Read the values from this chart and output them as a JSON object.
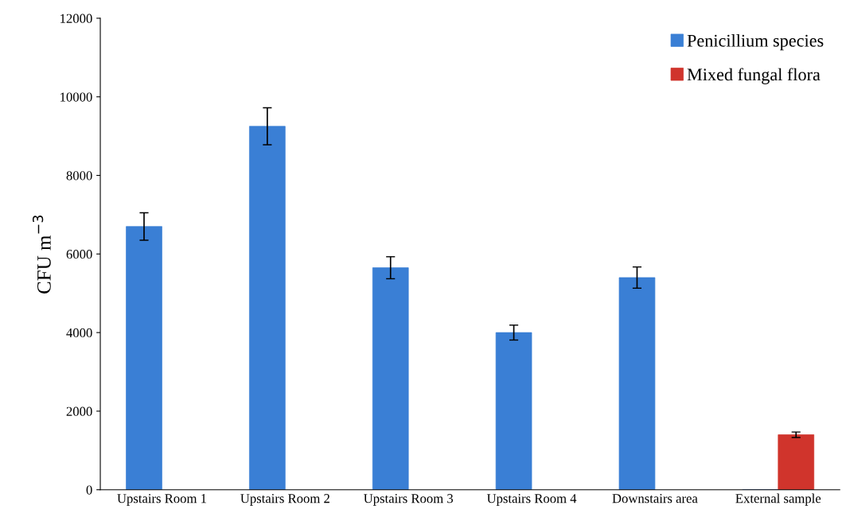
{
  "chart_data": {
    "type": "bar",
    "ylabel": "CFU m$^{−3}$",
    "categories": [
      "Upstairs Room 1",
      "Upstairs Room 2",
      "Upstairs Room 3",
      "Upstairs Room 4",
      "Downstairs area",
      "External sample"
    ],
    "series": [
      {
        "name": "Penicillium species",
        "color": "#3a7fd5",
        "values": [
          6700,
          9250,
          5650,
          4000,
          5400,
          0
        ],
        "errors": [
          350,
          470,
          280,
          190,
          270,
          null
        ]
      },
      {
        "name": "Mixed fungal flora",
        "color": "#d0342c",
        "values": [
          null,
          null,
          null,
          null,
          null,
          1400
        ],
        "errors": [
          null,
          null,
          null,
          null,
          null,
          70
        ]
      }
    ],
    "ylim": [
      0,
      12000
    ],
    "yticks": [
      0,
      2000,
      4000,
      6000,
      8000,
      10000,
      12000
    ],
    "grid": false,
    "legend": "top right"
  }
}
